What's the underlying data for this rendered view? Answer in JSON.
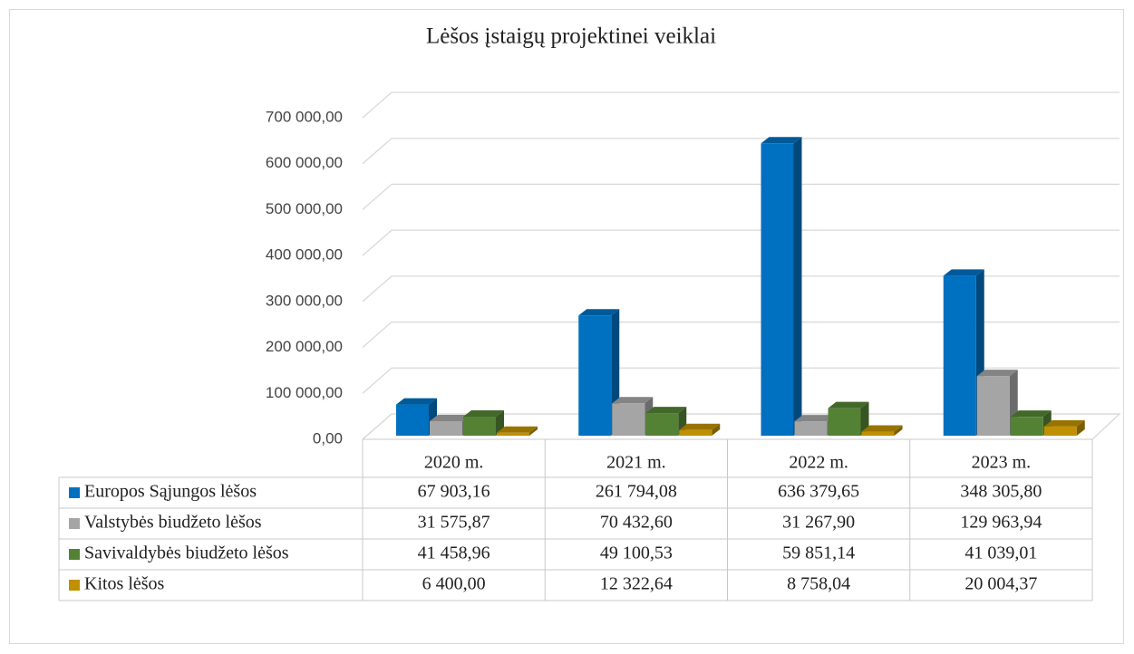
{
  "chart_data": {
    "type": "bar",
    "title": "Lėšos įstaigų projektinei veiklai",
    "categories": [
      "2020 m.",
      "2021 m.",
      "2022 m.",
      "2023 m."
    ],
    "series": [
      {
        "name": "Europos Sąjungos lėšos",
        "color": "#0070c0",
        "values": [
          67903.16,
          261794.08,
          636379.65,
          348305.8
        ],
        "value_labels": [
          "67 903,16",
          "261 794,08",
          "636 379,65",
          "348 305,80"
        ]
      },
      {
        "name": "Valstybės biudžeto lėšos",
        "color": "#a5a5a5",
        "values": [
          31575.87,
          70432.6,
          31267.9,
          129963.94
        ],
        "value_labels": [
          "31 575,87",
          "70 432,60",
          "31 267,90",
          "129 963,94"
        ]
      },
      {
        "name": "Savivaldybės biudžeto lėšos",
        "color": "#548235",
        "values": [
          41458.96,
          49100.53,
          59851.14,
          41039.01
        ],
        "value_labels": [
          "41 458,96",
          "49 100,53",
          "59 851,14",
          "41 039,01"
        ]
      },
      {
        "name": "Kitos lėšos",
        "color": "#bf9000",
        "values": [
          6400.0,
          12322.64,
          8758.04,
          20004.37
        ],
        "value_labels": [
          "6 400,00",
          "12 322,64",
          "8 758,04",
          "20 004,37"
        ]
      }
    ],
    "ylim": [
      0,
      700000
    ],
    "yticks": [
      {
        "value": 0,
        "label": "0,00"
      },
      {
        "value": 100000,
        "label": "100 000,00"
      },
      {
        "value": 200000,
        "label": "200 000,00"
      },
      {
        "value": 300000,
        "label": "300 000,00"
      },
      {
        "value": 400000,
        "label": "400 000,00"
      },
      {
        "value": 500000,
        "label": "500 000,00"
      },
      {
        "value": 600000,
        "label": "600 000,00"
      },
      {
        "value": 700000,
        "label": "700 000,00"
      }
    ],
    "grid": true
  }
}
